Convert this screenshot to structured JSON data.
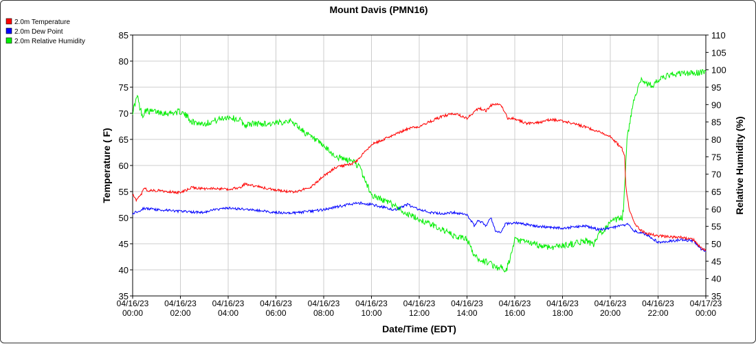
{
  "chart_data": {
    "type": "line",
    "title": "Mount Davis (PMN16)",
    "xlabel": "Date/Time (EDT)",
    "ylabel_left": "Temperature ( F)",
    "ylabel_right": "Relative Humidity (%)",
    "ylim_left": [
      35,
      85
    ],
    "ylim_right": [
      35,
      110
    ],
    "left_ticks": [
      35,
      40,
      45,
      50,
      55,
      60,
      65,
      70,
      75,
      80,
      85
    ],
    "right_ticks": [
      35,
      40,
      45,
      50,
      55,
      60,
      65,
      70,
      75,
      80,
      85,
      90,
      95,
      100,
      105,
      110
    ],
    "x_hours_range": [
      0,
      24
    ],
    "x_ticks": [
      {
        "hour": 0,
        "date": "04/16/23",
        "time": "00:00"
      },
      {
        "hour": 2,
        "date": "04/16/23",
        "time": "02:00"
      },
      {
        "hour": 4,
        "date": "04/16/23",
        "time": "04:00"
      },
      {
        "hour": 6,
        "date": "04/16/23",
        "time": "06:00"
      },
      {
        "hour": 8,
        "date": "04/16/23",
        "time": "08:00"
      },
      {
        "hour": 10,
        "date": "04/16/23",
        "time": "10:00"
      },
      {
        "hour": 12,
        "date": "04/16/23",
        "time": "12:00"
      },
      {
        "hour": 14,
        "date": "04/16/23",
        "time": "14:00"
      },
      {
        "hour": 16,
        "date": "04/16/23",
        "time": "16:00"
      },
      {
        "hour": 18,
        "date": "04/16/23",
        "time": "18:00"
      },
      {
        "hour": 20,
        "date": "04/16/23",
        "time": "20:00"
      },
      {
        "hour": 22,
        "date": "04/16/23",
        "time": "22:00"
      },
      {
        "hour": 24,
        "date": "04/17/23",
        "time": "00:00"
      }
    ],
    "grid": true,
    "legend_position": "top-left",
    "series": [
      {
        "name": "2.0m Temperature",
        "color": "#ff0000",
        "axis": "left",
        "x": [
          0,
          0.15,
          0.3,
          0.5,
          0.6,
          1.0,
          1.5,
          2.0,
          2.5,
          3.0,
          3.5,
          4.0,
          4.5,
          4.7,
          5.0,
          5.5,
          6.0,
          6.5,
          6.8,
          7.2,
          7.5,
          8.0,
          8.5,
          9.0,
          9.3,
          9.5,
          10.0,
          10.5,
          11.0,
          11.5,
          12.0,
          12.5,
          13.0,
          13.5,
          14.0,
          14.5,
          14.8,
          15.0,
          15.3,
          15.5,
          15.7,
          16.0,
          16.5,
          17.0,
          17.5,
          18.0,
          18.5,
          19.0,
          19.5,
          20.0,
          20.5,
          20.5,
          20.6,
          20.65,
          20.8,
          21.0,
          21.3,
          21.5,
          22.0,
          22.5,
          23.0,
          23.3,
          23.5,
          23.8,
          24.0
        ],
        "values": [
          54.5,
          53.3,
          54.0,
          55.7,
          55.2,
          55.2,
          55.0,
          54.8,
          55.8,
          55.5,
          55.6,
          55.4,
          55.8,
          56.5,
          56.2,
          55.7,
          55.3,
          55.0,
          54.9,
          55.5,
          56.0,
          58.0,
          59.6,
          60.2,
          60.5,
          61.5,
          64.0,
          65.0,
          66.0,
          67.0,
          67.5,
          68.5,
          69.5,
          70.0,
          69.0,
          71.0,
          70.5,
          71.5,
          71.8,
          71.0,
          69.0,
          69.0,
          68.0,
          68.2,
          68.8,
          68.5,
          68.0,
          67.3,
          66.5,
          65.5,
          63.2,
          62.8,
          62.0,
          56.0,
          51.5,
          49.0,
          47.5,
          47.0,
          46.5,
          46.3,
          46.2,
          46.0,
          45.7,
          44.2,
          43.7
        ]
      },
      {
        "name": "2.0m Dew Point",
        "color": "#0000ff",
        "axis": "left",
        "x": [
          0,
          0.5,
          1.0,
          1.5,
          2.0,
          3.0,
          3.5,
          4.0,
          5.0,
          6.0,
          6.5,
          7.0,
          8.0,
          8.5,
          9.0,
          9.5,
          10.0,
          10.5,
          11.0,
          11.5,
          12.0,
          12.5,
          13.0,
          13.5,
          14.0,
          14.3,
          14.5,
          14.8,
          15.0,
          15.2,
          15.4,
          15.6,
          16.0,
          17.0,
          18.0,
          19.0,
          19.5,
          20.0,
          20.5,
          20.7,
          21.0,
          21.5,
          22.0,
          22.5,
          23.0,
          23.5,
          23.8,
          24.0
        ],
        "values": [
          50.8,
          51.8,
          51.5,
          51.4,
          51.2,
          51.0,
          51.6,
          51.8,
          51.5,
          51.0,
          50.9,
          51.0,
          51.5,
          52.0,
          52.5,
          52.8,
          52.5,
          52.0,
          51.5,
          52.5,
          51.5,
          51.0,
          50.8,
          51.0,
          50.5,
          48.5,
          49.5,
          48.5,
          50.0,
          47.5,
          47.0,
          48.8,
          49.0,
          48.3,
          48.0,
          48.4,
          47.7,
          48.0,
          48.5,
          48.8,
          47.5,
          46.8,
          45.3,
          45.5,
          45.8,
          45.5,
          44.0,
          43.5
        ]
      },
      {
        "name": "2.0m Relative Humidity",
        "color": "#00ee00",
        "axis": "right",
        "x": [
          0,
          0.2,
          0.3,
          0.45,
          0.5,
          0.7,
          1.0,
          1.5,
          2.0,
          2.3,
          2.5,
          3.0,
          3.5,
          4.0,
          4.5,
          4.7,
          5.0,
          5.5,
          6.0,
          6.5,
          6.8,
          7.2,
          7.6,
          8.0,
          8.5,
          9.0,
          9.2,
          9.5,
          10.0,
          10.5,
          11.0,
          11.5,
          12.0,
          12.5,
          13.0,
          13.5,
          14.0,
          14.2,
          14.4,
          14.7,
          15.0,
          15.2,
          15.4,
          15.6,
          15.8,
          16.0,
          16.5,
          17.0,
          17.5,
          18.0,
          18.5,
          19.0,
          19.3,
          19.5,
          20.0,
          20.3,
          20.5,
          20.55,
          20.7,
          21.0,
          21.3,
          21.5,
          21.8,
          22.0,
          22.5,
          23.0,
          23.5,
          24.0
        ],
        "values": [
          88.0,
          92.5,
          89.0,
          86.5,
          88.5,
          88.0,
          88.0,
          87.5,
          88.0,
          86.5,
          85.0,
          84.5,
          85.5,
          86.5,
          85.5,
          84.0,
          84.5,
          84.5,
          84.5,
          85.5,
          84.5,
          82.0,
          80.0,
          78.0,
          75.0,
          74.0,
          74.0,
          72.0,
          64.0,
          62.5,
          61.0,
          58.5,
          57.0,
          55.5,
          54.0,
          52.0,
          51.5,
          48.0,
          46.0,
          45.0,
          44.5,
          43.0,
          43.5,
          41.5,
          45.5,
          51.0,
          50.5,
          49.5,
          49.0,
          49.5,
          50.0,
          51.0,
          49.5,
          52.5,
          56.0,
          57.0,
          57.5,
          60.0,
          80.0,
          92.0,
          97.5,
          96.0,
          95.5,
          97.0,
          98.5,
          99.0,
          99.0,
          99.5
        ]
      }
    ]
  }
}
